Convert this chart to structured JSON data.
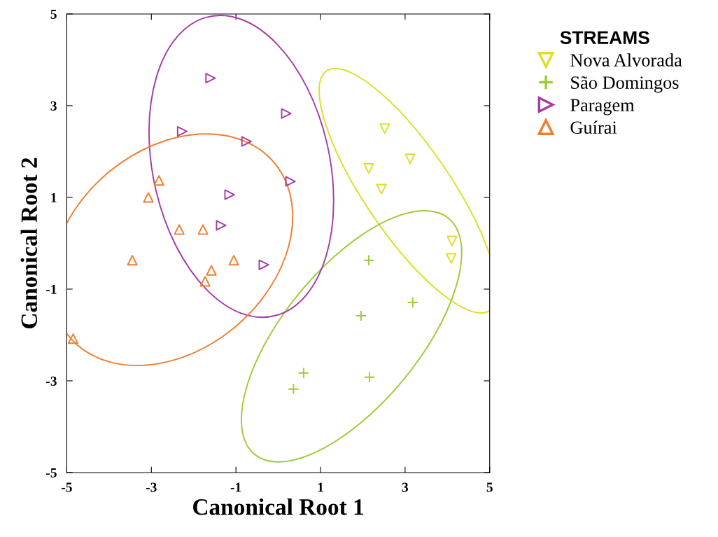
{
  "chart_data": {
    "type": "scatter",
    "xlabel": "Canonical Root 1",
    "ylabel": "Canonical Root 2",
    "legend_title": "STREAMS",
    "legend": "right",
    "grid": false,
    "xlim": [
      -5,
      5
    ],
    "ylim": [
      -5,
      5
    ],
    "xticks": [
      -5,
      -3,
      -1,
      1,
      3,
      5
    ],
    "yticks": [
      -5,
      -3,
      -1,
      1,
      3,
      5
    ],
    "series": [
      {
        "name": "Nova Alvorada",
        "color": "#dede2a",
        "marker": "triangle_down",
        "x": [
          2.52,
          2.14,
          3.12,
          2.44,
          4.11,
          4.09
        ],
        "values": [
          2.5,
          1.63,
          1.84,
          1.18,
          0.05,
          -0.33
        ]
      },
      {
        "name": "São Domingos",
        "color": "#9ccc3a",
        "marker": "plus",
        "x": [
          2.14,
          3.18,
          1.96,
          2.16,
          0.6,
          0.36
        ],
        "values": [
          -0.37,
          -1.29,
          -1.58,
          -2.92,
          -2.83,
          -3.18
        ]
      },
      {
        "name": "Paragem",
        "color": "#a63ca6",
        "marker": "triangle_right",
        "x": [
          -1.6,
          -2.27,
          0.19,
          -0.75,
          0.29,
          -1.15,
          -1.35,
          -0.34
        ],
        "values": [
          3.6,
          2.44,
          2.83,
          2.22,
          1.35,
          1.06,
          0.39,
          -0.47
        ]
      },
      {
        "name": "Guírai",
        "color": "#f07e30",
        "marker": "triangle",
        "x": [
          -2.82,
          -3.07,
          -2.34,
          -1.78,
          -3.45,
          -1.05,
          -1.58,
          -1.73,
          -4.85
        ],
        "values": [
          1.37,
          1.0,
          0.3,
          0.3,
          -0.37,
          -0.37,
          -0.59,
          -0.83,
          -2.08
        ]
      }
    ]
  }
}
